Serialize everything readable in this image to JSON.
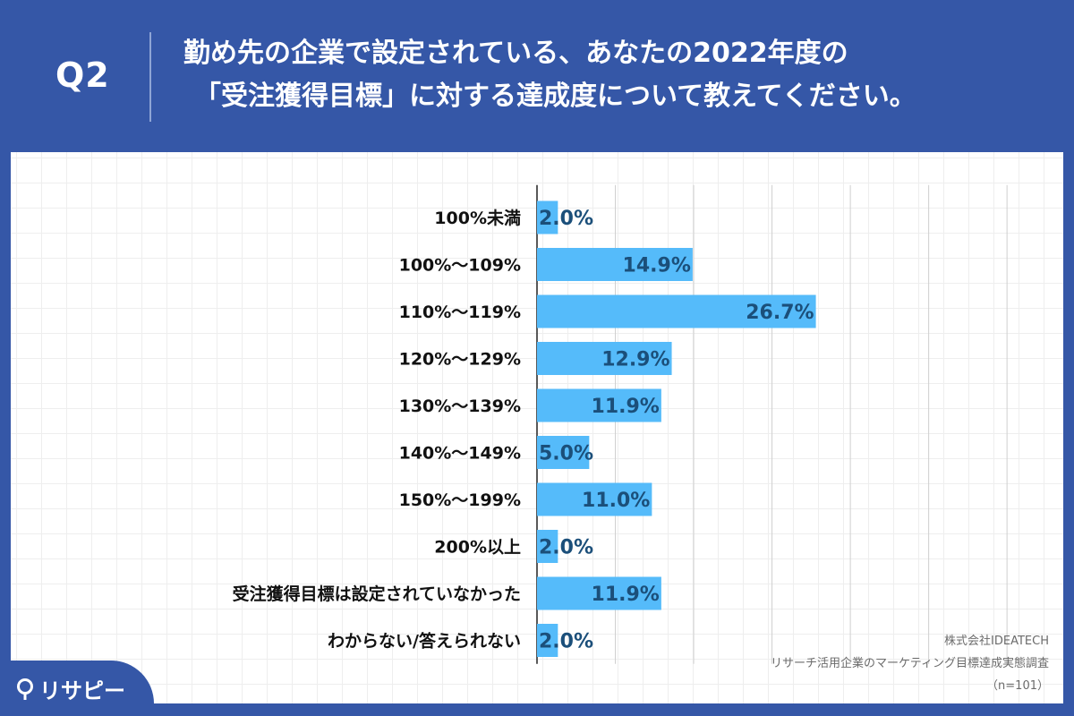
{
  "header": {
    "q_label": "Q2",
    "title_line1": "勤め先の企業で設定されている、あなたの2022年度の",
    "title_line2": "「受注獲得目標」に対する達成度について教えてください。"
  },
  "colors": {
    "background": "#3557a7",
    "bar": "#55bbfa",
    "value_text": "#1b4f7a"
  },
  "chart_data": {
    "type": "bar",
    "orientation": "horizontal",
    "categories": [
      "100%未満",
      "100%〜109%",
      "110%〜119%",
      "120%〜129%",
      "130%〜139%",
      "140%〜149%",
      "150%〜199%",
      "200%以上",
      "受注獲得目標は設定されていなかった",
      "わからない/答えられない"
    ],
    "values": [
      2.0,
      14.9,
      26.7,
      12.9,
      11.9,
      5.0,
      11.0,
      2.0,
      11.9,
      2.0
    ],
    "value_labels": [
      "2.0%",
      "14.9%",
      "26.7%",
      "12.9%",
      "11.9%",
      "5.0%",
      "11.0%",
      "2.0%",
      "11.9%",
      "2.0%"
    ],
    "xlim": [
      0,
      50
    ],
    "gridlines_x": [
      7.5,
      15,
      22.5,
      30,
      37.5,
      45
    ],
    "grid": true
  },
  "credit": {
    "line1": "株式会社IDEATECH",
    "line2": "リサーチ活用企業のマーケティング目標達成実態調査",
    "line3": "（n=101）"
  },
  "logo": {
    "icon": "pin-icon",
    "text": "リサピー"
  }
}
